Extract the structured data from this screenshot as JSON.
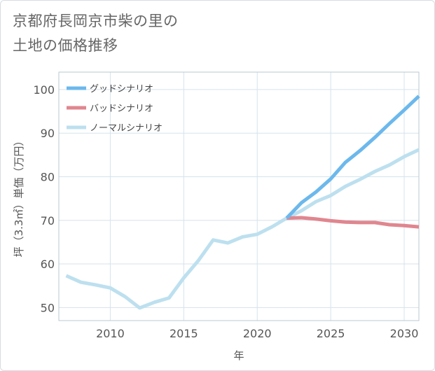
{
  "title_lines": [
    "京都府長岡京市柴の里の",
    "土地の価格推移"
  ],
  "chart_data": {
    "type": "line",
    "xlabel": "年",
    "ylabel": "坪（3.3㎡）単価（万円）",
    "xlim": [
      2006.5,
      2031
    ],
    "ylim": [
      47,
      104
    ],
    "x_ticks": [
      2010,
      2015,
      2020,
      2025,
      2030
    ],
    "y_ticks": [
      50,
      60,
      70,
      80,
      90,
      100
    ],
    "grid": true,
    "legend_position": "top-left",
    "series": [
      {
        "name": "グッドシナリオ",
        "color": "#6cb8ec",
        "points": [
          [
            2022,
            70.5
          ],
          [
            2023,
            74.0
          ],
          [
            2024,
            76.5
          ],
          [
            2025,
            79.5
          ],
          [
            2026,
            83.3
          ],
          [
            2027,
            86.0
          ],
          [
            2028,
            89.0
          ],
          [
            2029,
            92.2
          ],
          [
            2030,
            95.3
          ],
          [
            2031,
            98.5
          ]
        ]
      },
      {
        "name": "バッドシナリオ",
        "color": "#e0868f",
        "points": [
          [
            2022,
            70.5
          ],
          [
            2023,
            70.6
          ],
          [
            2024,
            70.3
          ],
          [
            2025,
            69.9
          ],
          [
            2026,
            69.6
          ],
          [
            2027,
            69.5
          ],
          [
            2028,
            69.5
          ],
          [
            2029,
            69.0
          ],
          [
            2030,
            68.8
          ],
          [
            2031,
            68.5
          ]
        ]
      },
      {
        "name": "ノーマルシナリオ",
        "color": "#bde0ef",
        "points": [
          [
            2007,
            57.3
          ],
          [
            2008,
            55.8
          ],
          [
            2009,
            55.2
          ],
          [
            2010,
            54.5
          ],
          [
            2011,
            52.5
          ],
          [
            2012,
            49.9
          ],
          [
            2013,
            51.2
          ],
          [
            2014,
            52.2
          ],
          [
            2015,
            56.8
          ],
          [
            2016,
            60.8
          ],
          [
            2017,
            65.5
          ],
          [
            2018,
            64.8
          ],
          [
            2019,
            66.2
          ],
          [
            2020,
            66.8
          ],
          [
            2021,
            68.5
          ],
          [
            2022,
            70.5
          ],
          [
            2023,
            72.2
          ],
          [
            2024,
            74.3
          ],
          [
            2025,
            75.7
          ],
          [
            2026,
            77.8
          ],
          [
            2027,
            79.4
          ],
          [
            2028,
            81.2
          ],
          [
            2029,
            82.7
          ],
          [
            2030,
            84.6
          ],
          [
            2031,
            86.2
          ]
        ]
      }
    ]
  }
}
